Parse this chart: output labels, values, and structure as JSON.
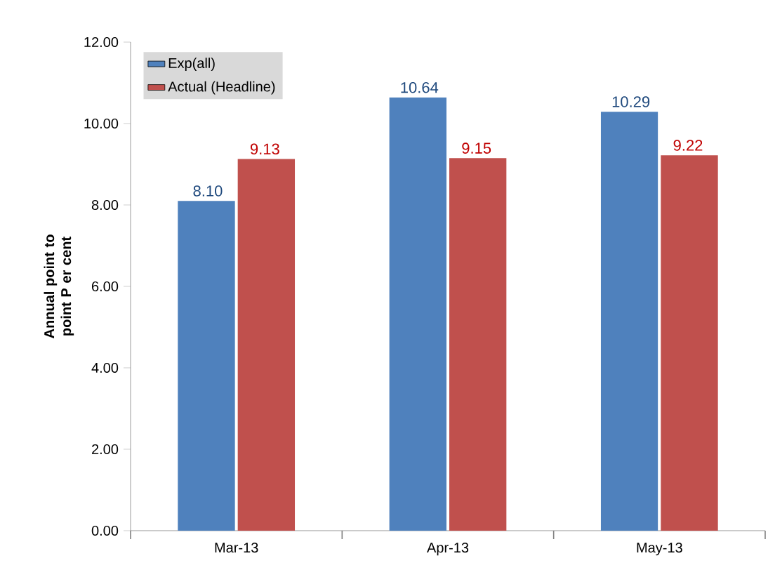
{
  "chart_data": {
    "type": "bar",
    "ylabel": "Annual point to point P er cent",
    "categories": [
      "Mar-13",
      "Apr-13",
      "May-13"
    ],
    "series": [
      {
        "name": "Exp(all)",
        "color": "#4f81bd",
        "values": [
          8.1,
          10.64,
          10.29
        ],
        "value_labels": [
          "8.10",
          "10.64",
          "10.29"
        ]
      },
      {
        "name": "Actual (Headline)",
        "color": "#c0504d",
        "values": [
          9.13,
          9.15,
          9.22
        ],
        "value_labels": [
          "9.13",
          "9.15",
          "9.22"
        ]
      }
    ],
    "ylim": [
      0,
      12
    ],
    "yticks": [
      {
        "value": 0,
        "label": "0.00"
      },
      {
        "value": 2,
        "label": "2.00"
      },
      {
        "value": 4,
        "label": "4.00"
      },
      {
        "value": 6,
        "label": "6.00"
      },
      {
        "value": 8,
        "label": "8.00"
      },
      {
        "value": 10,
        "label": "10.00"
      },
      {
        "value": 12,
        "label": "12.00"
      }
    ],
    "legend": "top left",
    "grid": false
  }
}
